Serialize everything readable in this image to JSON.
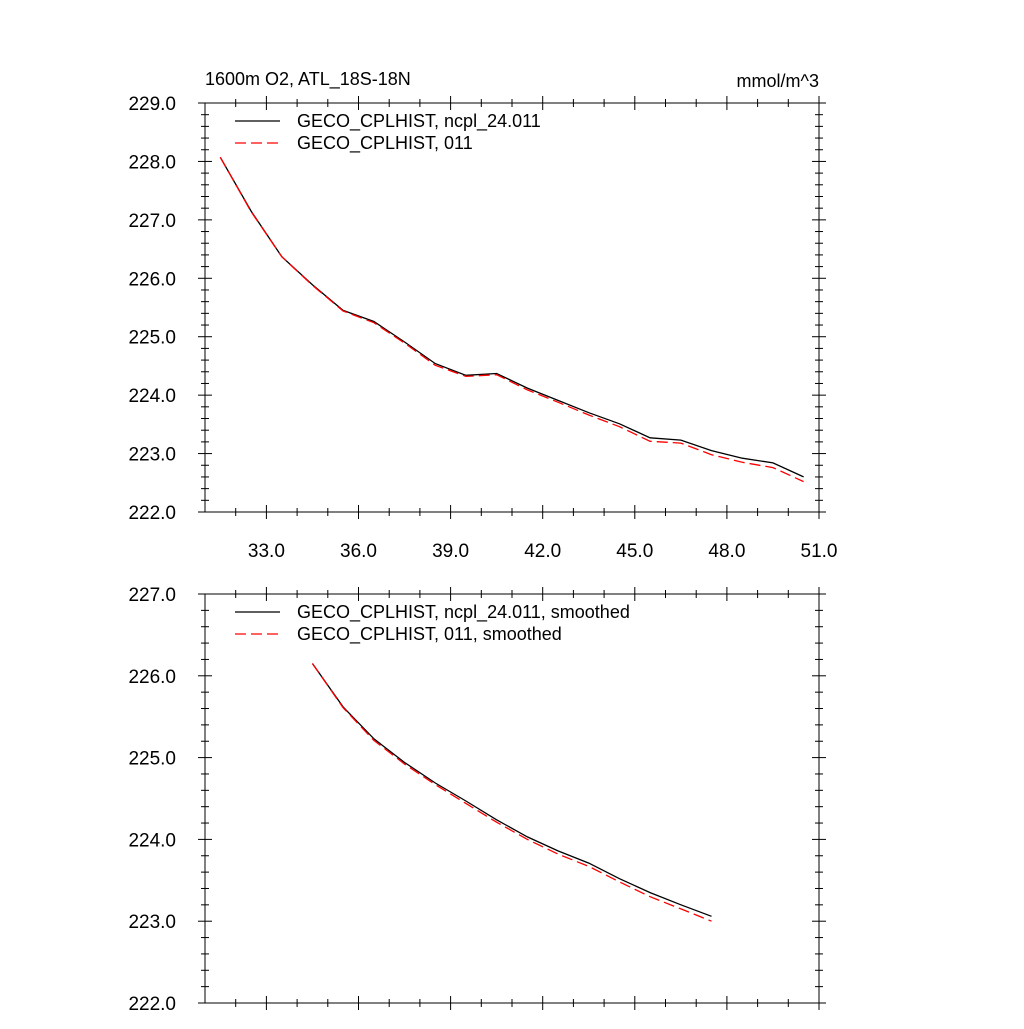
{
  "chart_data": [
    {
      "type": "line",
      "title": "1600m O2, ATL_18S-18N",
      "units": "mmol/m^3",
      "xlabel": "",
      "ylabel": "",
      "xlim": [
        31.0,
        51.0
      ],
      "ylim": [
        222.0,
        229.0
      ],
      "xticks": [
        "33.0",
        "36.0",
        "39.0",
        "42.0",
        "45.0",
        "48.0",
        "51.0"
      ],
      "yticks": [
        "222.0",
        "223.0",
        "224.0",
        "225.0",
        "226.0",
        "227.0",
        "228.0",
        "229.0"
      ],
      "grid": false,
      "legend_position": "top-left",
      "series": [
        {
          "name": "GECO_CPLHIST, ncpl_24.011",
          "color": "#000000",
          "dash": "solid",
          "x": [
            31.5,
            32.5,
            33.5,
            34.5,
            35.5,
            36.5,
            37.5,
            38.5,
            39.5,
            40.5,
            41.5,
            42.5,
            43.5,
            44.5,
            45.5,
            46.5,
            47.5,
            48.5,
            49.5,
            50.5
          ],
          "y": [
            228.07,
            227.15,
            226.37,
            225.89,
            225.45,
            225.26,
            224.91,
            224.54,
            224.34,
            224.37,
            224.12,
            223.91,
            223.7,
            223.51,
            223.27,
            223.23,
            223.05,
            222.92,
            222.84,
            222.6
          ]
        },
        {
          "name": "GECO_CPLHIST, 011",
          "color": "#ff0000",
          "dash": "dashed",
          "x": [
            31.5,
            32.5,
            33.5,
            34.5,
            35.5,
            36.5,
            37.5,
            38.5,
            39.5,
            40.5,
            41.5,
            42.5,
            43.5,
            44.5,
            45.5,
            46.5,
            47.5,
            48.5,
            49.5,
            50.5
          ],
          "y": [
            228.07,
            227.14,
            226.37,
            225.88,
            225.44,
            225.24,
            224.89,
            224.51,
            224.32,
            224.35,
            224.09,
            223.88,
            223.66,
            223.46,
            223.21,
            223.18,
            222.98,
            222.85,
            222.76,
            222.52
          ]
        }
      ]
    },
    {
      "type": "line",
      "title": "",
      "xlabel": "",
      "ylabel": "",
      "xlim": [
        31.0,
        51.0
      ],
      "ylim": [
        222.0,
        227.0
      ],
      "xticks": [],
      "yticks": [
        "222.0",
        "223.0",
        "224.0",
        "225.0",
        "226.0",
        "227.0"
      ],
      "grid": false,
      "legend_position": "top-left",
      "series": [
        {
          "name": "GECO_CPLHIST, ncpl_24.011, smoothed",
          "color": "#000000",
          "dash": "solid",
          "x": [
            34.5,
            35.5,
            36.5,
            37.5,
            38.5,
            39.5,
            40.5,
            41.5,
            42.5,
            43.5,
            44.5,
            45.5,
            46.5,
            47.5
          ],
          "y": [
            226.15,
            225.62,
            225.23,
            224.94,
            224.69,
            224.47,
            224.24,
            224.03,
            223.86,
            223.71,
            223.52,
            223.35,
            223.2,
            223.06
          ]
        },
        {
          "name": "GECO_CPLHIST, 011, smoothed",
          "color": "#ff0000",
          "dash": "dashed",
          "x": [
            34.5,
            35.5,
            36.5,
            37.5,
            38.5,
            39.5,
            40.5,
            41.5,
            42.5,
            43.5,
            44.5,
            45.5,
            46.5,
            47.5
          ],
          "y": [
            226.15,
            225.61,
            225.21,
            224.92,
            224.67,
            224.44,
            224.21,
            224.0,
            223.82,
            223.67,
            223.48,
            223.3,
            223.15,
            223.0
          ]
        }
      ]
    }
  ]
}
